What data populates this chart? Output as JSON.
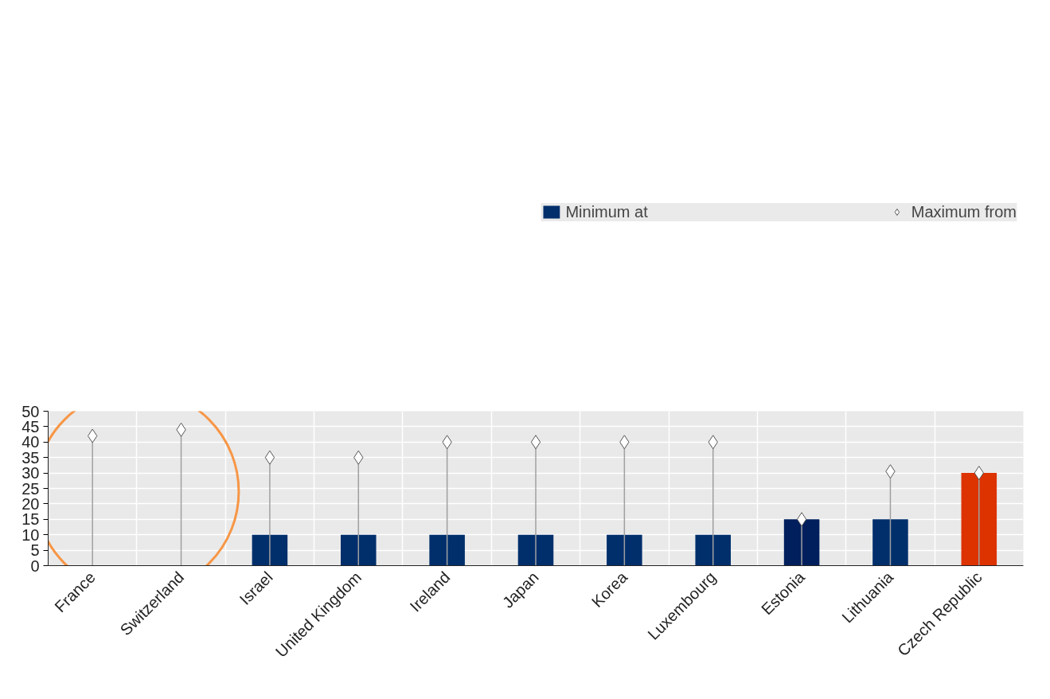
{
  "chart_data": {
    "type": "bar",
    "categories": [
      "France",
      "Switzerland",
      "Israel",
      "United Kingdom",
      "Ireland",
      "Japan",
      "Korea",
      "Luxembourg",
      "Estonia",
      "Lithuania",
      "Czech Republic"
    ],
    "series": [
      {
        "name": "Minimum at",
        "colors": [
          "#002f6c",
          "#002f6c",
          "#002f6c",
          "#002f6c",
          "#002f6c",
          "#002f6c",
          "#002f6c",
          "#002f6c",
          "#001f5c",
          "#002f6c",
          "#dc3300"
        ],
        "values": [
          0,
          0,
          10,
          10,
          10,
          10,
          10,
          10,
          15,
          15,
          30
        ]
      },
      {
        "name": "Maximum from",
        "type": "lollipop",
        "color": "#ffffff",
        "marker": "diamond",
        "values": [
          42,
          44,
          35,
          35,
          40,
          40,
          40,
          40,
          15,
          30.5,
          30
        ]
      }
    ],
    "ylim": [
      0,
      50
    ],
    "yticks": [
      0,
      5,
      10,
      15,
      20,
      25,
      30,
      35,
      40,
      45,
      50
    ],
    "grid": true,
    "legend": "top"
  }
}
